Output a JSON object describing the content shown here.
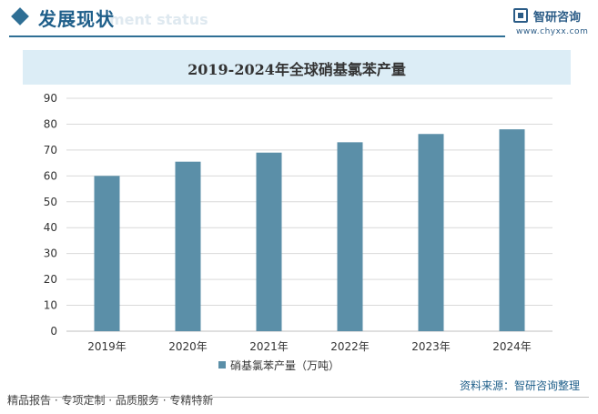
{
  "header": {
    "title": "发展现状",
    "watermark_text": "ment status",
    "logo_name": "智研咨询",
    "logo_url": "www.chyxx.com"
  },
  "chart_data": {
    "type": "bar",
    "title": "2019-2024年全球硝基氯苯产量",
    "categories": [
      "2019年",
      "2020年",
      "2021年",
      "2022年",
      "2023年",
      "2024年"
    ],
    "series": [
      {
        "name": "硝基氯苯产量（万吨）",
        "values": [
          60,
          65.5,
          69,
          73,
          76.2,
          78
        ]
      }
    ],
    "ylim": [
      0,
      90
    ],
    "yticks": [
      0,
      10,
      20,
      30,
      40,
      50,
      60,
      70,
      80,
      90
    ],
    "xlabel": "",
    "ylabel": "",
    "grid": true,
    "legend": "bottom",
    "bar_color": "#5b8fa8"
  },
  "footer": {
    "tagline": "精品报告 · 专项定制 · 品质服务 · 专精特新",
    "source": "资料来源：智研咨询整理"
  }
}
